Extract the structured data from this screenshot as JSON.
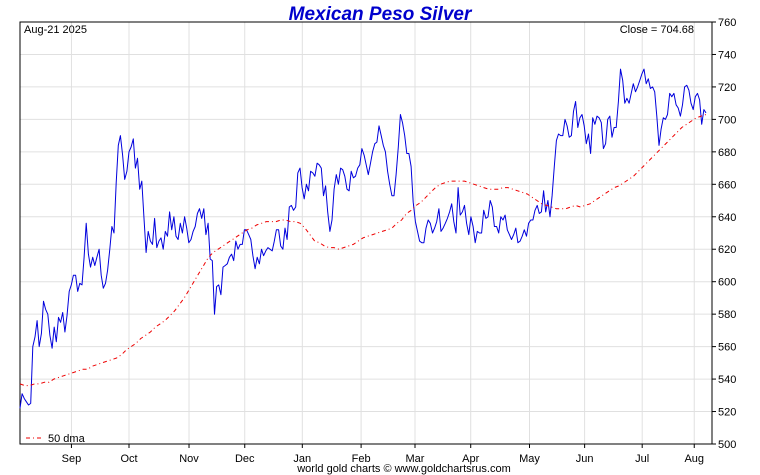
{
  "chart_data": {
    "type": "line",
    "title": "Mexican Peso Silver",
    "date_label": "Aug-21  2025",
    "close_label": "Close = 704.68",
    "legend_label": "50 dma",
    "credit": "world gold charts © www.goldchartsrus.com",
    "ylim": [
      500,
      760
    ],
    "y_ticks": [
      500,
      520,
      540,
      560,
      580,
      600,
      620,
      640,
      660,
      680,
      700,
      720,
      740,
      760
    ],
    "x_ticks": [
      "Sep",
      "Oct",
      "Nov",
      "Dec",
      "Jan",
      "Feb",
      "Mar",
      "Apr",
      "May",
      "Jun",
      "Jul",
      "Aug"
    ],
    "x_tick_pos": [
      0.084,
      0.178,
      0.276,
      0.367,
      0.461,
      0.557,
      0.645,
      0.736,
      0.832,
      0.922,
      1.016,
      1.101
    ],
    "grid": true,
    "colors": {
      "price": "#0000dd",
      "dma": "#ee0000",
      "title": "#0000cc",
      "grid": "#e0e0e0"
    },
    "series": [
      {
        "name": "",
        "values": [
          522,
          531,
          528,
          526,
          524,
          525,
          560,
          566,
          576,
          560,
          568,
          588,
          583,
          580,
          567,
          559,
          572,
          563,
          578,
          575,
          581,
          569,
          579,
          594,
          598,
          604,
          604,
          594,
          599,
          598,
          615,
          636,
          617,
          609,
          615,
          610,
          615,
          620,
          604,
          596,
          599,
          607,
          620,
          634,
          630,
          661,
          684,
          690,
          678,
          663,
          668,
          680,
          683,
          688,
          670,
          676,
          657,
          662,
          639,
          618,
          631,
          625,
          623,
          639,
          621,
          625,
          627,
          620,
          631,
          628,
          643,
          632,
          640,
          628,
          626,
          636,
          630,
          640,
          633,
          624,
          626,
          631,
          634,
          642,
          645,
          639,
          645,
          629,
          636,
          614,
          613,
          580,
          597,
          598,
          592,
          609,
          610,
          611,
          615,
          617,
          613,
          625,
          620,
          623,
          623,
          632,
          632,
          629,
          626,
          616,
          608,
          615,
          611,
          620,
          616,
          619,
          621,
          620,
          619,
          625,
          632,
          632,
          622,
          620,
          633,
          626,
          646,
          647,
          644,
          646,
          667,
          670,
          658,
          651,
          660,
          656,
          668,
          667,
          665,
          673,
          672,
          670,
          653,
          659,
          643,
          631,
          638,
          657,
          666,
          660,
          670,
          669,
          665,
          657,
          656,
          668,
          664,
          665,
          670,
          672,
          682,
          678,
          672,
          666,
          673,
          680,
          685,
          686,
          696,
          690,
          684,
          680,
          668,
          660,
          653,
          653,
          666,
          683,
          703,
          698,
          690,
          679,
          679,
          671,
          649,
          637,
          631,
          625,
          624,
          624,
          633,
          638,
          636,
          630,
          633,
          637,
          645,
          631,
          633,
          636,
          639,
          643,
          648,
          637,
          630,
          658,
          641,
          643,
          647,
          636,
          629,
          640,
          634,
          624,
          631,
          630,
          630,
          644,
          639,
          640,
          650,
          646,
          634,
          634,
          630,
          640,
          638,
          641,
          632,
          629,
          626,
          629,
          633,
          624,
          625,
          628,
          632,
          628,
          636,
          638,
          638,
          644,
          647,
          642,
          643,
          656,
          643,
          650,
          640,
          653,
          671,
          687,
          691,
          690,
          690,
          700,
          696,
          689,
          690,
          705,
          711,
          695,
          701,
          703,
          696,
          685,
          691,
          679,
          701,
          697,
          702,
          701,
          698,
          682,
          685,
          700,
          702,
          689,
          695,
          695,
          711,
          731,
          724,
          710,
          713,
          710,
          716,
          722,
          717,
          720,
          724,
          728,
          731,
          722,
          725,
          719,
          720,
          717,
          702,
          684,
          694,
          701,
          700,
          703,
          716,
          714,
          716,
          709,
          707,
          702,
          709,
          720,
          721,
          718,
          710,
          706,
          714,
          716,
          712,
          697,
          706,
          704
        ]
      },
      {
        "name": "50 dma",
        "values": [
          537,
          536,
          536,
          537,
          537,
          538,
          538,
          540,
          541,
          542,
          543,
          544,
          545,
          546,
          546,
          548,
          549,
          550,
          551,
          552,
          553,
          555,
          558,
          560,
          562,
          565,
          567,
          569,
          572,
          574,
          576,
          579,
          582,
          586,
          590,
          595,
          600,
          605,
          610,
          615,
          618,
          620,
          622,
          624,
          626,
          628,
          630,
          632,
          633,
          635,
          636,
          637,
          637,
          637,
          638,
          638,
          637,
          637,
          636,
          633,
          629,
          625,
          624,
          622,
          621,
          621,
          620,
          621,
          622,
          623,
          625,
          627,
          628,
          629,
          630,
          631,
          632,
          633,
          636,
          638,
          642,
          644,
          647,
          649,
          652,
          655,
          658,
          660,
          661,
          662,
          662,
          662,
          662,
          661,
          660,
          659,
          658,
          657,
          657,
          657,
          658,
          658,
          657,
          656,
          655,
          654,
          652,
          650,
          648,
          647,
          646,
          645,
          645,
          645,
          646,
          647,
          646,
          647,
          648,
          650,
          652,
          654,
          656,
          658,
          659,
          661,
          663,
          665,
          668,
          671,
          674,
          677,
          680,
          683,
          686,
          689,
          692,
          695,
          697,
          699,
          701,
          702,
          703
        ]
      }
    ]
  }
}
